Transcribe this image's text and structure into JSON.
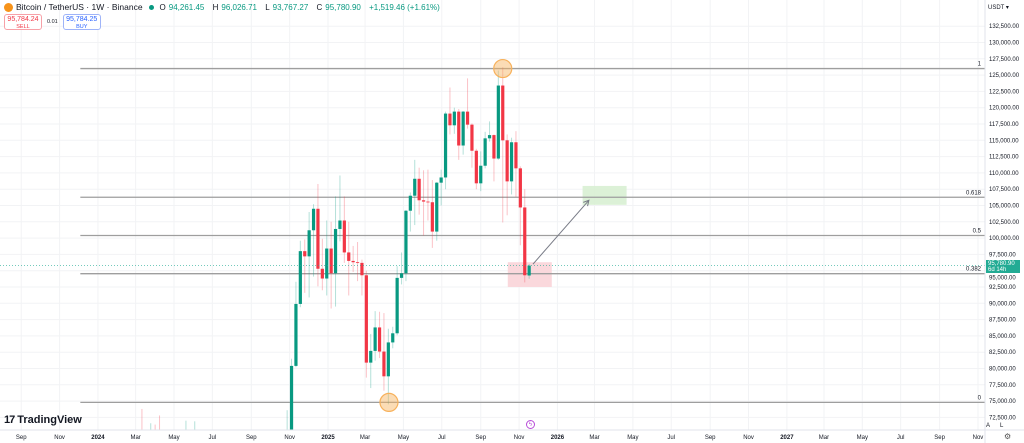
{
  "header": {
    "symbol": "Bitcoin / TetherUS",
    "interval": "1W",
    "exchange": "Binance",
    "sep": "·",
    "ohlc": [
      {
        "k": "O",
        "v": "94,261.45"
      },
      {
        "k": "H",
        "v": "96,026.71"
      },
      {
        "k": "L",
        "v": "93,767.27"
      },
      {
        "k": "C",
        "v": "95,780.90"
      }
    ],
    "change": "+1,519.46 (+1.61%)"
  },
  "trade": {
    "sell_price": "95,784.24",
    "sell_label": "SELL",
    "spread": "0.01",
    "buy_price": "95,784.25",
    "buy_label": "BUY"
  },
  "axis": {
    "currency": "USDT",
    "current_price": "95,780.90",
    "countdown": "6d 14h",
    "auto": "A",
    "log": "L"
  },
  "brand": "TradingView",
  "colors": {
    "up": "#089981",
    "down": "#f23645",
    "price_tag": "#22ab94",
    "fib_line": "#9e9e9e",
    "target_box": "#d8efd3",
    "entry_box": "#fad4d8",
    "marker": "#f7b15b"
  },
  "icons": {
    "gear": "gear-icon",
    "bolt": "lightning-icon",
    "logo": "bitcoin-logo-icon"
  },
  "chart_data": {
    "type": "candlestick",
    "ylim": [
      70600,
      134000
    ],
    "yticks": [
      "72,500.00",
      "75,000.00",
      "77,500.00",
      "80,000.00",
      "82,500.00",
      "85,000.00",
      "87,500.00",
      "90,000.00",
      "92,500.00",
      "95,000.00",
      "97,500.00",
      "100,000.00",
      "102,500.00",
      "105,000.00",
      "107,500.00",
      "110,000.00",
      "112,500.00",
      "115,000.00",
      "117,500.00",
      "120,000.00",
      "122,500.00",
      "125,000.00",
      "127,500.00",
      "130,000.00",
      "132,500.00"
    ],
    "xticks": [
      [
        "Sep",
        "2023-09-01"
      ],
      [
        "Nov",
        "2023-11-01"
      ],
      [
        "2024",
        "2024-01-01"
      ],
      [
        "Mar",
        "2024-03-01"
      ],
      [
        "May",
        "2024-05-01"
      ],
      [
        "Jul",
        "2024-07-01"
      ],
      [
        "Sep",
        "2024-09-01"
      ],
      [
        "Nov",
        "2024-11-01"
      ],
      [
        "2025",
        "2025-01-01"
      ],
      [
        "Mar",
        "2025-03-01"
      ],
      [
        "May",
        "2025-05-01"
      ],
      [
        "Jul",
        "2025-07-01"
      ],
      [
        "Sep",
        "2025-09-01"
      ],
      [
        "Nov",
        "2025-11-01"
      ],
      [
        "2026",
        "2026-01-01"
      ],
      [
        "Mar",
        "2026-03-01"
      ],
      [
        "May",
        "2026-05-01"
      ],
      [
        "Jul",
        "2026-07-01"
      ],
      [
        "Sep",
        "2026-09-01"
      ],
      [
        "Nov",
        "2026-11-01"
      ],
      [
        "2027",
        "2027-01-01"
      ],
      [
        "Mar",
        "2027-03-01"
      ],
      [
        "May",
        "2027-05-01"
      ],
      [
        "Jul",
        "2027-07-01"
      ],
      [
        "Sep",
        "2027-09-01"
      ],
      [
        "Nov",
        "2027-11-01"
      ]
    ],
    "candles": [
      [
        "2024-03-11",
        68900,
        73800,
        68100,
        68300
      ],
      [
        "2024-03-18",
        68300,
        68900,
        60700,
        67200
      ],
      [
        "2024-03-25",
        67200,
        71600,
        66800,
        69600
      ],
      [
        "2024-04-01",
        69600,
        71400,
        64500,
        69300
      ],
      [
        "2024-04-08",
        69300,
        72800,
        60600,
        65700
      ],
      [
        "2024-05-20",
        66200,
        72000,
        66100,
        68500
      ],
      [
        "2024-05-27",
        68500,
        70600,
        66600,
        67700
      ],
      [
        "2024-06-03",
        67700,
        71900,
        67600,
        69600
      ],
      [
        "2024-06-10",
        69600,
        70200,
        65000,
        66600
      ],
      [
        "2024-10-28",
        68000,
        73600,
        66800,
        68700
      ],
      [
        "2024-11-04",
        68700,
        81500,
        66800,
        80400
      ],
      [
        "2024-11-11",
        80400,
        93300,
        80200,
        89900
      ],
      [
        "2024-11-18",
        89900,
        99600,
        89400,
        98000
      ],
      [
        "2024-11-25",
        98000,
        99800,
        91600,
        97200
      ],
      [
        "2024-12-02",
        97200,
        104000,
        90900,
        101200
      ],
      [
        "2024-12-09",
        101200,
        105200,
        94100,
        104500
      ],
      [
        "2024-12-16",
        104500,
        108300,
        92600,
        95300
      ],
      [
        "2024-12-23",
        95300,
        99900,
        92000,
        93800
      ],
      [
        "2024-12-30",
        93800,
        102700,
        91200,
        98400
      ],
      [
        "2025-01-06",
        98400,
        102500,
        89200,
        94600
      ],
      [
        "2025-01-13",
        94600,
        106400,
        89500,
        101400
      ],
      [
        "2025-01-20",
        101400,
        109600,
        99500,
        102700
      ],
      [
        "2025-01-27",
        102700,
        106400,
        96200,
        97800
      ],
      [
        "2025-02-03",
        97800,
        102500,
        91200,
        96500
      ],
      [
        "2025-02-10",
        96500,
        98800,
        94800,
        96300
      ],
      [
        "2025-02-17",
        96300,
        99400,
        93400,
        96200
      ],
      [
        "2025-02-24",
        96200,
        96700,
        91200,
        94300
      ],
      [
        "2025-03-03",
        94300,
        95000,
        78600,
        80900
      ],
      [
        "2025-03-10",
        80900,
        85300,
        77000,
        82700
      ],
      [
        "2025-03-17",
        82700,
        88800,
        81200,
        86300
      ],
      [
        "2025-03-24",
        86300,
        88700,
        81600,
        82600
      ],
      [
        "2025-03-31",
        82600,
        88500,
        76600,
        78800
      ],
      [
        "2025-04-07",
        78800,
        86100,
        74500,
        84000
      ],
      [
        "2025-04-14",
        84000,
        86400,
        83100,
        85400
      ],
      [
        "2025-04-21",
        85400,
        95700,
        85100,
        93900
      ],
      [
        "2025-04-28",
        93900,
        97800,
        92900,
        94600
      ],
      [
        "2025-05-05",
        94600,
        104300,
        93400,
        104200
      ],
      [
        "2025-05-12",
        104200,
        107000,
        101000,
        106500
      ],
      [
        "2025-05-19",
        106500,
        112000,
        102000,
        109100
      ],
      [
        "2025-05-26",
        109100,
        110800,
        103600,
        105800
      ],
      [
        "2025-06-02",
        105800,
        110400,
        100400,
        105600
      ],
      [
        "2025-06-09",
        105600,
        110500,
        102700,
        105500
      ],
      [
        "2025-06-16",
        105500,
        108900,
        98500,
        101000
      ],
      [
        "2025-06-23",
        101000,
        108600,
        99600,
        108500
      ],
      [
        "2025-06-30",
        108500,
        110500,
        105000,
        109300
      ],
      [
        "2025-07-07",
        109300,
        119400,
        107500,
        119100
      ],
      [
        "2025-07-14",
        119100,
        123100,
        115900,
        117300
      ],
      [
        "2025-07-21",
        117300,
        120000,
        116000,
        119400
      ],
      [
        "2025-07-28",
        119400,
        119800,
        112000,
        114200
      ],
      [
        "2025-08-04",
        114200,
        119500,
        112800,
        119400
      ],
      [
        "2025-08-11",
        119400,
        124500,
        116800,
        117400
      ],
      [
        "2025-08-18",
        117400,
        117600,
        110800,
        113400
      ],
      [
        "2025-08-25",
        113400,
        113700,
        107500,
        108400
      ],
      [
        "2025-09-01",
        108400,
        113300,
        107200,
        111100
      ],
      [
        "2025-09-08",
        111100,
        116300,
        110700,
        115300
      ],
      [
        "2025-09-15",
        115300,
        117900,
        114800,
        115800
      ],
      [
        "2025-09-22",
        115800,
        115900,
        108700,
        112200
      ],
      [
        "2025-09-29",
        112200,
        125700,
        112000,
        123400
      ],
      [
        "2025-10-06",
        123400,
        126200,
        102400,
        115000
      ],
      [
        "2025-10-13",
        115000,
        115900,
        103500,
        108700
      ],
      [
        "2025-10-20",
        108700,
        115400,
        106700,
        114700
      ],
      [
        "2025-10-27",
        114700,
        116400,
        106300,
        110700
      ],
      [
        "2025-11-03",
        110700,
        111000,
        98900,
        104700
      ],
      [
        "2025-11-10",
        104700,
        107500,
        93200,
        94300
      ],
      [
        "2025-11-17",
        94261.45,
        96026.71,
        93767.27,
        95780.9
      ]
    ],
    "fib": {
      "start": "2023-12-04",
      "levels": [
        {
          "label": "1",
          "price": 126000
        },
        {
          "label": "0.618",
          "price": 106260
        },
        {
          "label": "0.5",
          "price": 100400
        },
        {
          "label": "0.382",
          "price": 94540
        },
        {
          "label": "0",
          "price": 74800
        }
      ]
    },
    "markers": [
      {
        "date": "2025-10-06",
        "price": 126000
      },
      {
        "date": "2025-04-08",
        "price": 74800
      }
    ],
    "boxes": [
      {
        "kind": "entry",
        "from": "2025-10-14",
        "to": "2025-12-23",
        "top": 96300,
        "bottom": 92500
      },
      {
        "kind": "target",
        "from": "2026-02-10",
        "to": "2026-04-21",
        "top": 108000,
        "bottom": 105100
      }
    ],
    "arrow": {
      "from": [
        "2025-11-23",
        96000
      ],
      "to": [
        "2026-02-20",
        105800
      ]
    }
  }
}
